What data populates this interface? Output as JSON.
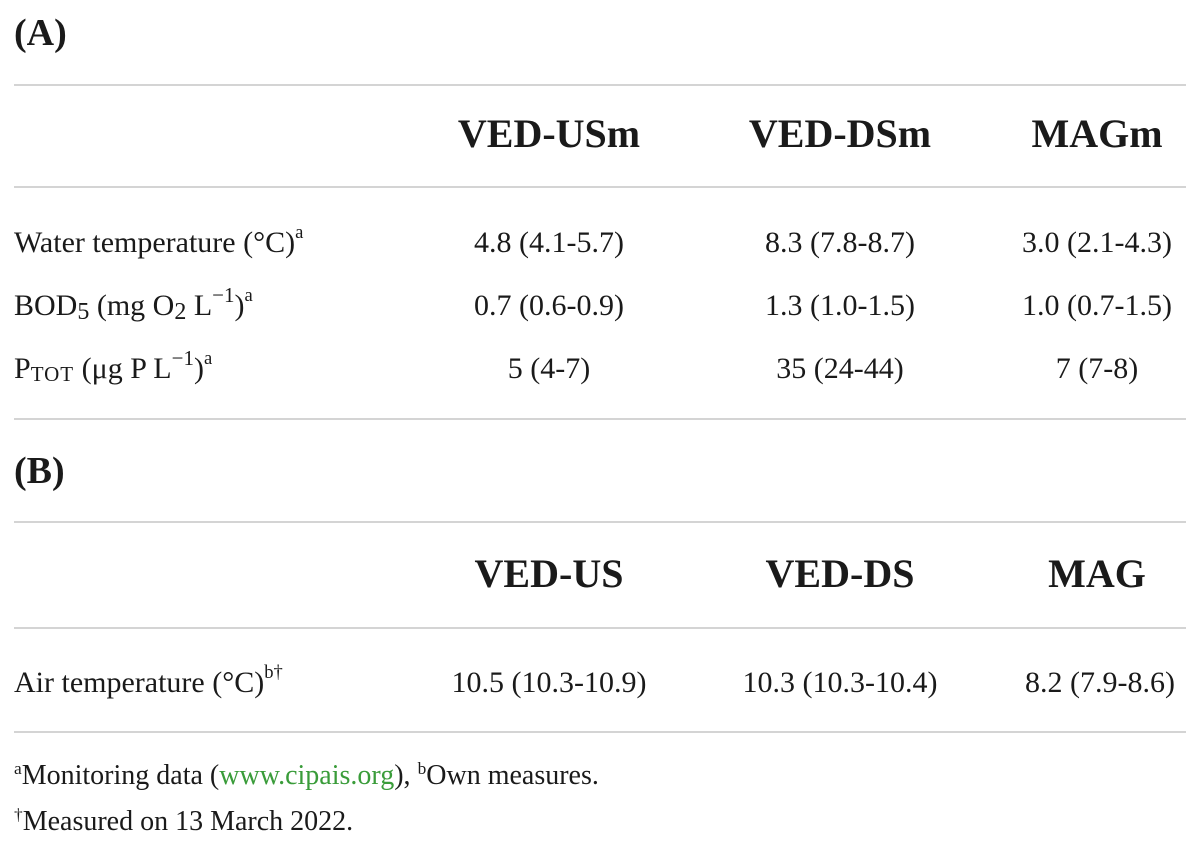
{
  "section_a": {
    "label": "(A)",
    "columns": [
      "VED-USm",
      "VED-DSm",
      "MAGm"
    ],
    "rows": [
      {
        "label_main": "Water temperature (°C)",
        "label_note": "a",
        "values": [
          "4.8 (4.1-5.7)",
          "8.3 (7.8-8.7)",
          "3.0 (2.1-4.3)"
        ]
      },
      {
        "label_parts": [
          "BOD",
          "5",
          " (mg O",
          "2",
          " L",
          "−1",
          ")",
          "a"
        ],
        "values": [
          "0.7 (0.6-0.9)",
          "1.3 (1.0-1.5)",
          "1.0 (0.7-1.5)"
        ]
      },
      {
        "label_parts": [
          "P",
          "TOT",
          " (μg P L",
          "−1",
          ")",
          "a"
        ],
        "values": [
          "5 (4-7)",
          "35 (24-44)",
          "7 (7-8)"
        ]
      }
    ]
  },
  "section_b": {
    "label": "(B)",
    "columns": [
      "VED-US",
      "VED-DS",
      "MAG"
    ],
    "rows": [
      {
        "label_main": "Air temperature (°C)",
        "label_note": "b†",
        "values": [
          "10.5 (10.3-10.9)",
          "10.3 (10.3-10.4)",
          "8.2 (7.9-8.6)"
        ]
      }
    ]
  },
  "footnotes": {
    "line1_mark_a": "a",
    "line1_text_a": "Monitoring data (",
    "line1_link": "www.cipais.org",
    "line1_text_b": "), ",
    "line1_mark_b": "b",
    "line1_text_c": "Own measures.",
    "line2_mark": "†",
    "line2_text": "Measured on 13 March 2022."
  },
  "colors": {
    "rule": "#d4d4d4",
    "link": "#3a9c3a",
    "text": "#1a1a1a"
  }
}
